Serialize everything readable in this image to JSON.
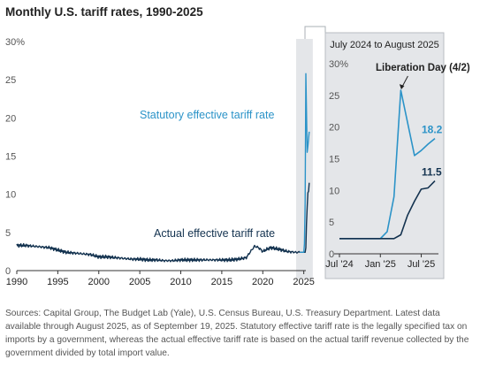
{
  "title": "Monthly U.S. tariff rates, 1990-2025",
  "source_note": "Sources: Capital Group, The Budget Lab (Yale), U.S. Census Bureau, U.S. Treasury Department. Latest data available through August 2025, as of September 19, 2025. Statutory effective tariff rate is the legally specified tax on imports by a government, whereas the actual effective tariff rate is based on the actual tariff revenue collected by the government divided by total import value.",
  "colors": {
    "statutory": "#2b93c8",
    "actual": "#13324f",
    "highlight_bg": "#e4e6e9",
    "inset_border": "#b8bcc2",
    "axis": "#555555"
  },
  "chart_data": [
    {
      "type": "line",
      "title": "Monthly U.S. tariff rates, 1990-2025",
      "xlim": [
        1990,
        2025.9
      ],
      "ylim": [
        0,
        30
      ],
      "y_ticks": [
        0,
        5,
        10,
        15,
        20,
        25,
        30
      ],
      "y_tick_labels": [
        "0",
        "5",
        "10",
        "15",
        "20",
        "25",
        "30%"
      ],
      "x_ticks": [
        1990,
        1995,
        2000,
        2005,
        2010,
        2015,
        2020,
        2025
      ],
      "x_tick_labels": [
        "1990",
        "1995",
        "2000",
        "2005",
        "2010",
        "2015",
        "2020",
        "2025"
      ],
      "highlight_range": [
        2024.5,
        2025.67
      ],
      "annotations": {
        "statutory": "Statutory effective tariff rate",
        "actual": "Actual effective tariff rate"
      },
      "series": [
        {
          "key": "statutory",
          "x": [
            2024.5,
            2024.917,
            2025.0,
            2025.083,
            2025.167,
            2025.25,
            2025.333,
            2025.417,
            2025.5,
            2025.583,
            2025.667
          ],
          "y": [
            2.4,
            2.4,
            2.4,
            3.5,
            9.0,
            25.8,
            21.0,
            15.5,
            16.3,
            17.3,
            18.2
          ]
        },
        {
          "key": "actual",
          "x": [
            1990,
            1991,
            1992,
            1993,
            1994,
            1995,
            1996,
            1997,
            1998,
            1999,
            2000,
            2001,
            2002,
            2003,
            2004,
            2005,
            2006,
            2007,
            2008,
            2009,
            2010,
            2011,
            2012,
            2013,
            2014,
            2015,
            2016,
            2017,
            2018,
            2018.5,
            2019,
            2019.5,
            2020,
            2020.5,
            2021,
            2022,
            2023,
            2024,
            2024.5,
            2024.917,
            2025.0,
            2025.083,
            2025.167,
            2025.25,
            2025.333,
            2025.417,
            2025.5,
            2025.583,
            2025.667
          ],
          "y": [
            3.3,
            3.3,
            3.2,
            3.1,
            3.0,
            2.7,
            2.4,
            2.3,
            2.2,
            2.1,
            1.8,
            1.8,
            1.7,
            1.6,
            1.5,
            1.5,
            1.4,
            1.4,
            1.3,
            1.3,
            1.4,
            1.4,
            1.4,
            1.4,
            1.4,
            1.4,
            1.4,
            1.5,
            1.7,
            2.5,
            3.2,
            3.0,
            2.5,
            2.8,
            3.0,
            2.8,
            2.5,
            2.4,
            2.4,
            2.4,
            2.4,
            2.4,
            2.4,
            3.0,
            6.1,
            8.3,
            10.2,
            10.4,
            11.5
          ]
        }
      ]
    },
    {
      "type": "line",
      "title": "July 2024 to August 2025",
      "xlim": [
        2024.5,
        2025.667
      ],
      "ylim": [
        0,
        30
      ],
      "y_ticks": [
        0,
        5,
        10,
        15,
        20,
        25,
        30
      ],
      "y_tick_labels": [
        "0",
        "5",
        "10",
        "15",
        "20",
        "25",
        "30%"
      ],
      "x_ticks": [
        2024.5,
        2025.0,
        2025.5
      ],
      "x_tick_labels": [
        "Jul '24",
        "Jan '25",
        "Jul '25"
      ],
      "annotation": {
        "text": "Liberation Day (4/2)",
        "x": 2025.25,
        "y": 25.8
      },
      "end_labels": {
        "statutory": "18.2",
        "actual": "11.5"
      },
      "series": [
        {
          "key": "statutory",
          "x": [
            2024.5,
            2024.917,
            2025.0,
            2025.083,
            2025.167,
            2025.25,
            2025.417,
            2025.5,
            2025.583,
            2025.667
          ],
          "y": [
            2.4,
            2.4,
            2.4,
            3.5,
            9.0,
            25.8,
            15.5,
            16.3,
            17.3,
            18.2
          ]
        },
        {
          "key": "actual",
          "x": [
            2024.5,
            2024.917,
            2025.0,
            2025.083,
            2025.167,
            2025.25,
            2025.333,
            2025.417,
            2025.5,
            2025.583,
            2025.667
          ],
          "y": [
            2.4,
            2.4,
            2.4,
            2.4,
            2.4,
            3.0,
            6.1,
            8.3,
            10.2,
            10.4,
            11.5
          ]
        }
      ]
    }
  ]
}
